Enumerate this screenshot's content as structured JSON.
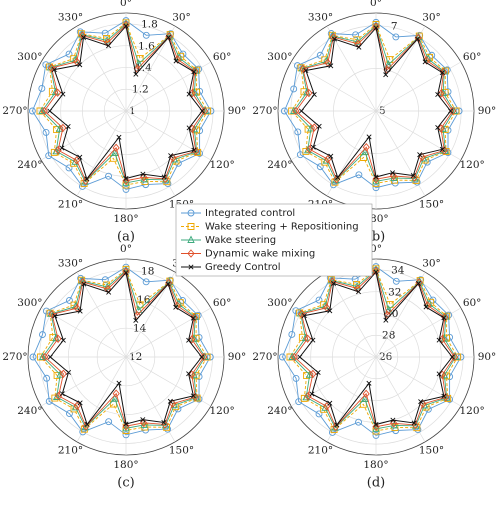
{
  "chart_data": [
    {
      "type": "polar",
      "label": "(a)",
      "theta": [
        0,
        15,
        30,
        45,
        60,
        75,
        90,
        105,
        120,
        135,
        150,
        165,
        180,
        195,
        210,
        225,
        240,
        255,
        270,
        285,
        300,
        315,
        330,
        345
      ],
      "thetaticks": [
        {
          "value": 0,
          "label": "0°"
        },
        {
          "value": 30,
          "label": "30°"
        },
        {
          "value": 60,
          "label": "60°"
        },
        {
          "value": 90,
          "label": "90°"
        },
        {
          "value": 120,
          "label": "120°"
        },
        {
          "value": 150,
          "label": "150°"
        },
        {
          "value": 180,
          "label": "180°"
        },
        {
          "value": 210,
          "label": "210°"
        },
        {
          "value": 240,
          "label": "240°"
        },
        {
          "value": 270,
          "label": "270°"
        },
        {
          "value": 300,
          "label": "300°"
        },
        {
          "value": 330,
          "label": "330°"
        }
      ],
      "rlim": [
        1,
        1.9
      ],
      "rticks": [
        1,
        1.2,
        1.4,
        1.6,
        1.8
      ],
      "series": [
        {
          "name": "Integrated control",
          "color": "#5b9bd5",
          "marker": "o",
          "values": [
            1.83,
            1.72,
            1.82,
            1.74,
            1.77,
            1.7,
            1.78,
            1.7,
            1.78,
            1.68,
            1.77,
            1.7,
            1.72,
            1.62,
            1.8,
            1.74,
            1.82,
            1.76,
            1.86,
            1.8,
            1.85,
            1.74,
            1.84,
            1.74
          ]
        },
        {
          "name": "Wake steering + Repositioning",
          "color": "#f0a800",
          "marker": "s",
          "values": [
            1.81,
            1.5,
            1.81,
            1.71,
            1.75,
            1.67,
            1.75,
            1.67,
            1.76,
            1.65,
            1.75,
            1.67,
            1.68,
            1.45,
            1.77,
            1.68,
            1.76,
            1.66,
            1.79,
            1.7,
            1.81,
            1.68,
            1.82,
            1.69
          ]
        },
        {
          "name": "Wake steering",
          "color": "#3daa7d",
          "marker": "^",
          "values": [
            1.8,
            1.45,
            1.8,
            1.69,
            1.74,
            1.65,
            1.73,
            1.65,
            1.75,
            1.63,
            1.73,
            1.65,
            1.66,
            1.4,
            1.75,
            1.66,
            1.74,
            1.63,
            1.77,
            1.67,
            1.8,
            1.66,
            1.81,
            1.67
          ]
        },
        {
          "name": "Dynamic wake mixing",
          "color": "#e0502a",
          "marker": "d",
          "values": [
            1.79,
            1.4,
            1.79,
            1.67,
            1.73,
            1.63,
            1.72,
            1.63,
            1.74,
            1.61,
            1.72,
            1.63,
            1.64,
            1.35,
            1.74,
            1.64,
            1.72,
            1.6,
            1.75,
            1.65,
            1.79,
            1.64,
            1.8,
            1.65
          ]
        },
        {
          "name": "Greedy Control",
          "color": "#111111",
          "marker": "x",
          "values": [
            1.78,
            1.35,
            1.78,
            1.65,
            1.72,
            1.6,
            1.7,
            1.6,
            1.72,
            1.58,
            1.7,
            1.6,
            1.62,
            1.25,
            1.72,
            1.6,
            1.68,
            1.55,
            1.7,
            1.6,
            1.76,
            1.6,
            1.78,
            1.62
          ]
        }
      ]
    },
    {
      "type": "polar",
      "label": "(b)",
      "theta": [
        0,
        15,
        30,
        45,
        60,
        75,
        90,
        105,
        120,
        135,
        150,
        165,
        180,
        195,
        210,
        225,
        240,
        255,
        270,
        285,
        300,
        315,
        330,
        345
      ],
      "thetaticks": [
        {
          "value": 0,
          "label": "0°"
        },
        {
          "value": 30,
          "label": "30°"
        },
        {
          "value": 60,
          "label": "60°"
        },
        {
          "value": 90,
          "label": "90°"
        },
        {
          "value": 120,
          "label": "120°"
        },
        {
          "value": 150,
          "label": "150°"
        },
        {
          "value": 180,
          "label": "180°"
        },
        {
          "value": 210,
          "label": "210°"
        },
        {
          "value": 240,
          "label": "240°"
        },
        {
          "value": 270,
          "label": "270°"
        },
        {
          "value": 300,
          "label": "300°"
        },
        {
          "value": 330,
          "label": "330°"
        }
      ],
      "rlim": [
        5,
        7.3
      ],
      "rticks": [
        5,
        6,
        7
      ],
      "series": [
        {
          "color": "#5b9bd5",
          "marker": "o",
          "values": [
            7.08,
            6.8,
            7.05,
            6.85,
            6.93,
            6.75,
            6.95,
            6.75,
            6.95,
            6.7,
            6.93,
            6.75,
            6.8,
            6.55,
            7.0,
            6.85,
            7.05,
            6.9,
            7.15,
            7.0,
            7.13,
            6.85,
            7.1,
            6.85
          ]
        },
        {
          "color": "#f0a800",
          "marker": "s",
          "values": [
            7.03,
            6.25,
            7.03,
            6.78,
            6.88,
            6.68,
            6.88,
            6.68,
            6.9,
            6.63,
            6.88,
            6.68,
            6.7,
            6.13,
            6.93,
            6.7,
            6.9,
            6.65,
            6.98,
            6.75,
            7.03,
            6.7,
            7.05,
            6.73
          ]
        },
        {
          "color": "#3daa7d",
          "marker": "^",
          "values": [
            7.0,
            6.13,
            7.0,
            6.73,
            6.85,
            6.63,
            6.83,
            6.63,
            6.88,
            6.58,
            6.83,
            6.63,
            6.65,
            6.0,
            6.88,
            6.65,
            6.85,
            6.58,
            6.93,
            6.68,
            7.0,
            6.65,
            7.03,
            6.68
          ]
        },
        {
          "color": "#e0502a",
          "marker": "d",
          "values": [
            6.98,
            6.0,
            6.98,
            6.68,
            6.83,
            6.58,
            6.8,
            6.58,
            6.85,
            6.53,
            6.8,
            6.58,
            6.6,
            5.88,
            6.85,
            6.6,
            6.8,
            6.5,
            6.88,
            6.63,
            6.98,
            6.6,
            7.0,
            6.63
          ]
        },
        {
          "color": "#111111",
          "marker": "x",
          "values": [
            6.95,
            5.88,
            6.95,
            6.63,
            6.8,
            6.5,
            6.75,
            6.5,
            6.8,
            6.45,
            6.75,
            6.5,
            6.55,
            5.63,
            6.8,
            6.5,
            6.7,
            6.38,
            6.75,
            6.5,
            6.9,
            6.5,
            6.95,
            6.55
          ]
        }
      ]
    },
    {
      "type": "polar",
      "label": "(c)",
      "theta": [
        0,
        15,
        30,
        45,
        60,
        75,
        90,
        105,
        120,
        135,
        150,
        165,
        180,
        195,
        210,
        225,
        240,
        255,
        270,
        285,
        300,
        315,
        330,
        345
      ],
      "thetaticks": [
        {
          "value": 0,
          "label": "0°"
        },
        {
          "value": 30,
          "label": "30°"
        },
        {
          "value": 60,
          "label": "60°"
        },
        {
          "value": 90,
          "label": "90°"
        },
        {
          "value": 120,
          "label": "120°"
        },
        {
          "value": 150,
          "label": "150°"
        },
        {
          "value": 180,
          "label": "180°"
        },
        {
          "value": 210,
          "label": "210°"
        },
        {
          "value": 240,
          "label": "240°"
        },
        {
          "value": 270,
          "label": "270°"
        },
        {
          "value": 300,
          "label": "300°"
        },
        {
          "value": 330,
          "label": "330°"
        }
      ],
      "rlim": [
        12,
        18.8
      ],
      "rticks": [
        12,
        14,
        16,
        18
      ],
      "series": [
        {
          "color": "#5b9bd5",
          "marker": "o",
          "values": [
            18.23,
            17.4,
            18.15,
            17.55,
            17.78,
            17.25,
            17.85,
            17.25,
            17.85,
            17.1,
            17.78,
            17.25,
            17.4,
            16.65,
            18.0,
            17.55,
            18.15,
            17.7,
            18.45,
            18.0,
            18.38,
            17.55,
            18.3,
            17.55
          ]
        },
        {
          "color": "#f0a800",
          "marker": "s",
          "values": [
            18.08,
            15.75,
            18.08,
            17.33,
            17.63,
            17.03,
            17.63,
            17.03,
            17.7,
            16.88,
            17.63,
            17.03,
            17.1,
            15.38,
            17.78,
            17.1,
            17.7,
            16.95,
            17.93,
            17.25,
            18.08,
            17.1,
            18.15,
            17.18
          ]
        },
        {
          "color": "#3daa7d",
          "marker": "^",
          "values": [
            18.0,
            15.38,
            18.0,
            17.18,
            17.55,
            16.88,
            17.48,
            16.88,
            17.63,
            16.73,
            17.48,
            16.88,
            16.95,
            15.0,
            17.63,
            16.95,
            17.55,
            16.73,
            17.78,
            17.03,
            18.0,
            16.95,
            18.08,
            17.03
          ]
        },
        {
          "color": "#e0502a",
          "marker": "d",
          "values": [
            17.93,
            15.0,
            17.93,
            17.03,
            17.48,
            16.73,
            17.4,
            16.73,
            17.55,
            16.58,
            17.4,
            16.73,
            16.8,
            14.63,
            17.55,
            16.8,
            17.4,
            16.5,
            17.63,
            16.88,
            17.93,
            16.8,
            18.0,
            16.88
          ]
        },
        {
          "color": "#111111",
          "marker": "x",
          "values": [
            17.85,
            14.63,
            17.85,
            16.88,
            17.4,
            16.5,
            17.25,
            16.5,
            17.4,
            16.35,
            17.25,
            16.5,
            16.65,
            13.88,
            17.4,
            16.5,
            17.1,
            16.13,
            17.25,
            16.5,
            17.7,
            16.5,
            17.85,
            16.65
          ]
        }
      ]
    },
    {
      "type": "polar",
      "label": "(d)",
      "theta": [
        0,
        15,
        30,
        45,
        60,
        75,
        90,
        105,
        120,
        135,
        150,
        165,
        180,
        195,
        210,
        225,
        240,
        255,
        270,
        285,
        300,
        315,
        330,
        345
      ],
      "thetaticks": [
        {
          "value": 0,
          "label": "0°"
        },
        {
          "value": 30,
          "label": "30°"
        },
        {
          "value": 60,
          "label": "60°"
        },
        {
          "value": 90,
          "label": "90°"
        },
        {
          "value": 120,
          "label": "120°"
        },
        {
          "value": 150,
          "label": "150°"
        },
        {
          "value": 180,
          "label": "180°"
        },
        {
          "value": 210,
          "label": "210°"
        },
        {
          "value": 240,
          "label": "240°"
        },
        {
          "value": 270,
          "label": "270°"
        },
        {
          "value": 300,
          "label": "300°"
        },
        {
          "value": 330,
          "label": "330°"
        }
      ],
      "rlim": [
        26,
        35
      ],
      "rticks": [
        26,
        28,
        30,
        32,
        34
      ],
      "series": [
        {
          "color": "#5b9bd5",
          "marker": "o",
          "values": [
            34.3,
            33.2,
            34.2,
            33.4,
            33.7,
            33,
            33.8,
            33,
            33.8,
            32.8,
            33.7,
            33,
            33.2,
            32.2,
            34,
            33.4,
            34.2,
            33.6,
            34.6,
            34,
            34.5,
            33.4,
            34.4,
            33.4
          ]
        },
        {
          "color": "#f0a800",
          "marker": "s",
          "values": [
            34.1,
            31,
            34.1,
            33.1,
            33.5,
            32.7,
            33.5,
            32.7,
            33.6,
            32.5,
            33.5,
            32.7,
            32.8,
            30.5,
            33.7,
            32.8,
            33.6,
            32.6,
            33.9,
            33,
            34.1,
            32.8,
            34.2,
            32.9
          ]
        },
        {
          "color": "#3daa7d",
          "marker": "^",
          "values": [
            34,
            30.5,
            34,
            32.9,
            33.4,
            32.5,
            33.3,
            32.5,
            33.5,
            32.3,
            33.3,
            32.5,
            32.6,
            30,
            33.5,
            32.6,
            33.4,
            32.3,
            33.7,
            32.7,
            34,
            32.6,
            34.1,
            32.7
          ]
        },
        {
          "color": "#e0502a",
          "marker": "d",
          "values": [
            33.9,
            30,
            33.9,
            32.7,
            33.3,
            32.3,
            33.2,
            32.3,
            33.4,
            32.1,
            33.2,
            32.3,
            32.4,
            29.5,
            33.4,
            32.4,
            33.2,
            32,
            33.5,
            32.5,
            33.9,
            32.4,
            34,
            32.5
          ]
        },
        {
          "color": "#111111",
          "marker": "x",
          "values": [
            33.8,
            29.5,
            33.8,
            32.5,
            33.2,
            32,
            33,
            32,
            33.2,
            31.8,
            33,
            32,
            32.2,
            28.5,
            33.2,
            32,
            32.8,
            31.5,
            33,
            32,
            33.6,
            32,
            33.8,
            32.2
          ]
        }
      ]
    }
  ]
}
